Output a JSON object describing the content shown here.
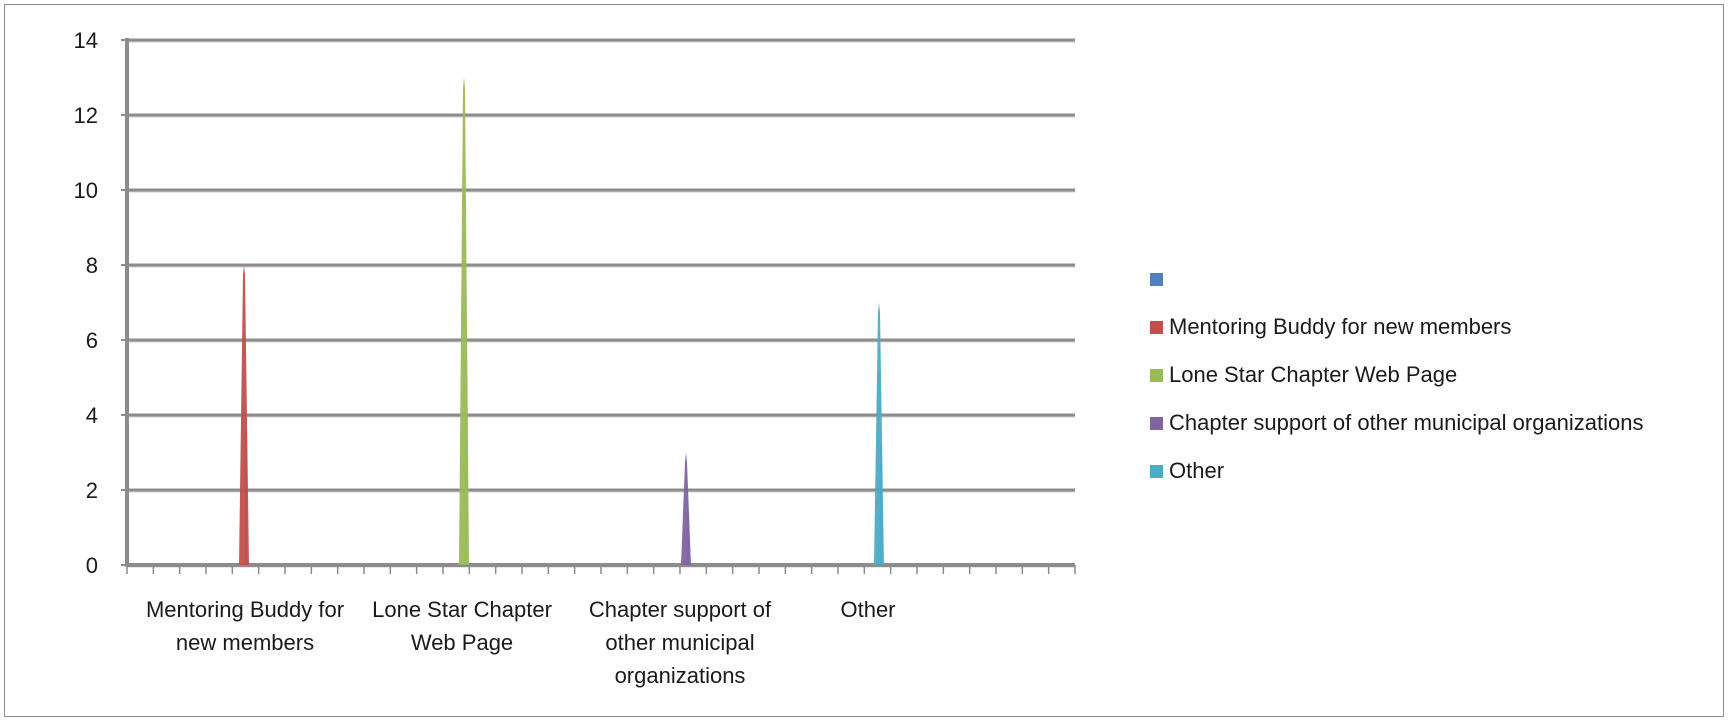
{
  "chart_data": {
    "type": "area",
    "title": "",
    "xlabel": "",
    "ylabel": "",
    "ylim": [
      0,
      14
    ],
    "yticks": [
      0,
      2,
      4,
      6,
      8,
      10,
      12,
      14
    ],
    "grid": true,
    "legend_position": "right",
    "categories": [
      "Mentoring Buddy for new members",
      "Lone Star Chapter Web Page",
      "Chapter support of other municipal organizations",
      "Other"
    ],
    "series": [
      {
        "name": "",
        "color": "#4F81BD",
        "values": [
          0,
          0,
          0,
          0
        ]
      },
      {
        "name": "Mentoring Buddy for new members",
        "color": "#C0504D",
        "values": [
          8,
          0,
          0,
          0
        ]
      },
      {
        "name": "Lone Star Chapter Web Page",
        "color": "#9BBB59",
        "values": [
          0,
          13,
          0,
          0
        ]
      },
      {
        "name": "Chapter support of other municipal organizations",
        "color": "#8064A2",
        "values": [
          0,
          0,
          3,
          0
        ]
      },
      {
        "name": "Other",
        "color": "#4BACC6",
        "values": [
          0,
          0,
          0,
          7
        ]
      }
    ]
  }
}
